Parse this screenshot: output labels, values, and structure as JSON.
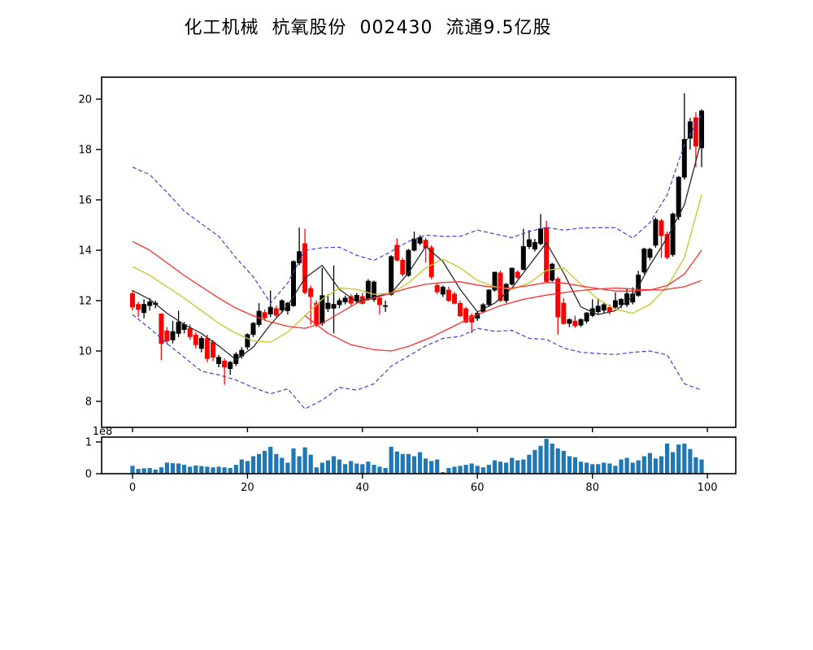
{
  "title": "化工机械  杭氧股份  002430  流通9.5亿股",
  "stock": {
    "industry": "化工机械",
    "name": "杭氧股份",
    "code": "002430",
    "float_shares": "流通9.5亿股"
  },
  "chart_data": {
    "type": "candlestick+volume",
    "title": "化工机械  杭氧股份  002430  流通9.5亿股",
    "xlabel": "",
    "ylabel": "",
    "x_ticks": [
      0,
      20,
      40,
      60,
      80,
      100
    ],
    "price_axis": {
      "ticks": [
        8,
        10,
        12,
        14,
        16,
        18,
        20
      ],
      "range": [
        6.97,
        20.87
      ]
    },
    "volume_axis": {
      "ticks": [
        0,
        1
      ],
      "offset_label": "1e8",
      "range": [
        0,
        1.15
      ]
    },
    "legend": "none",
    "grid": false,
    "colors": {
      "up": "#000000",
      "down": "#ff0000",
      "volume": "#1f77b4",
      "ma_black": "#2b2b2b",
      "ma_yellow": "#c9c932",
      "ma_red": "#ff2e2e",
      "band_blue": "#4040dd",
      "spine": "#000000"
    },
    "candles_ohlc": [
      [
        12.28,
        12.42,
        11.6,
        11.74
      ],
      [
        11.85,
        11.95,
        11.35,
        11.65
      ],
      [
        11.52,
        12.05,
        11.3,
        11.85
      ],
      [
        11.8,
        12.1,
        11.6,
        11.95
      ],
      [
        11.85,
        12.0,
        11.7,
        11.9
      ],
      [
        11.47,
        11.5,
        9.64,
        10.3
      ],
      [
        10.8,
        10.95,
        10.25,
        10.4
      ],
      [
        10.44,
        11.2,
        10.3,
        10.77
      ],
      [
        10.7,
        11.6,
        10.55,
        11.15
      ],
      [
        10.85,
        11.15,
        10.7,
        11.05
      ],
      [
        10.9,
        11.05,
        10.45,
        10.57
      ],
      [
        10.63,
        10.75,
        10.1,
        10.25
      ],
      [
        10.1,
        10.6,
        9.95,
        10.5
      ],
      [
        10.5,
        10.65,
        9.55,
        9.7
      ],
      [
        10.35,
        10.45,
        9.6,
        9.75
      ],
      [
        9.5,
        9.85,
        9.35,
        9.75
      ],
      [
        9.6,
        9.7,
        8.66,
        9.36
      ],
      [
        9.3,
        9.6,
        9.05,
        9.55
      ],
      [
        9.5,
        9.95,
        9.4,
        9.87
      ],
      [
        9.8,
        10.15,
        9.7,
        10.03
      ],
      [
        10.16,
        10.7,
        10.05,
        10.65
      ],
      [
        10.65,
        11.15,
        10.55,
        11.1
      ],
      [
        11.05,
        11.9,
        10.95,
        11.58
      ],
      [
        11.53,
        11.65,
        11.2,
        11.32
      ],
      [
        11.47,
        12.4,
        11.35,
        11.74
      ],
      [
        11.68,
        11.8,
        11.35,
        11.42
      ],
      [
        11.63,
        12.05,
        11.5,
        12.0
      ],
      [
        11.6,
        11.95,
        11.45,
        11.9
      ],
      [
        11.8,
        13.6,
        11.75,
        13.55
      ],
      [
        13.5,
        14.9,
        13.4,
        13.95
      ],
      [
        14.26,
        14.85,
        12.25,
        12.32
      ],
      [
        12.48,
        12.6,
        11.05,
        12.16
      ],
      [
        11.9,
        12.0,
        10.95,
        11.05
      ],
      [
        11.1,
        13.3,
        11.0,
        12.2
      ],
      [
        11.68,
        12.25,
        11.55,
        11.9
      ],
      [
        11.7,
        13.4,
        10.7,
        11.85
      ],
      [
        11.84,
        12.1,
        11.7,
        12.0
      ],
      [
        11.95,
        12.2,
        11.85,
        12.1
      ],
      [
        12.16,
        12.25,
        11.8,
        11.9
      ],
      [
        12.0,
        12.3,
        11.9,
        12.21
      ],
      [
        12.16,
        12.3,
        11.85,
        11.89
      ],
      [
        12.1,
        12.85,
        12.0,
        12.77
      ],
      [
        12.05,
        12.8,
        11.95,
        12.74
      ],
      [
        12.1,
        12.2,
        11.45,
        11.84
      ],
      [
        11.8,
        12.0,
        11.55,
        11.8
      ],
      [
        12.25,
        13.8,
        12.2,
        13.75
      ],
      [
        14.2,
        14.47,
        13.55,
        13.61
      ],
      [
        13.6,
        13.7,
        12.95,
        13.05
      ],
      [
        13.0,
        14.05,
        12.95,
        14.0
      ],
      [
        14.0,
        14.74,
        13.95,
        14.45
      ],
      [
        14.28,
        14.6,
        14.2,
        14.5
      ],
      [
        14.4,
        14.5,
        13.5,
        14.1
      ],
      [
        14.1,
        14.2,
        12.85,
        12.95
      ],
      [
        12.6,
        12.7,
        12.25,
        12.35
      ],
      [
        12.26,
        12.6,
        12.15,
        12.53
      ],
      [
        12.42,
        12.55,
        11.95,
        12.0
      ],
      [
        12.26,
        12.35,
        11.85,
        11.89
      ],
      [
        11.89,
        12.0,
        11.35,
        11.4
      ],
      [
        11.68,
        11.75,
        11.1,
        11.15
      ],
      [
        11.4,
        11.5,
        10.71,
        11.15
      ],
      [
        11.3,
        11.55,
        11.2,
        11.5
      ],
      [
        11.57,
        11.9,
        11.5,
        11.84
      ],
      [
        11.84,
        12.45,
        11.75,
        12.42
      ],
      [
        12.42,
        13.15,
        12.35,
        13.13
      ],
      [
        13.1,
        13.2,
        11.95,
        12.0
      ],
      [
        12.0,
        12.7,
        11.9,
        12.65
      ],
      [
        12.65,
        13.3,
        12.6,
        13.29
      ],
      [
        13.13,
        13.2,
        12.85,
        12.92
      ],
      [
        13.24,
        14.85,
        13.2,
        14.15
      ],
      [
        14.15,
        14.8,
        14.05,
        14.42
      ],
      [
        14.05,
        14.45,
        13.95,
        14.31
      ],
      [
        14.26,
        15.44,
        14.2,
        14.85
      ],
      [
        14.9,
        15.17,
        12.7,
        12.76
      ],
      [
        12.81,
        13.5,
        12.75,
        13.45
      ],
      [
        12.86,
        12.95,
        10.65,
        11.35
      ],
      [
        11.9,
        12.1,
        11.05,
        11.09
      ],
      [
        11.1,
        11.3,
        10.95,
        11.25
      ],
      [
        11.19,
        11.4,
        10.92,
        11.0
      ],
      [
        11.03,
        11.3,
        10.95,
        11.25
      ],
      [
        11.19,
        11.55,
        11.1,
        11.51
      ],
      [
        11.41,
        12.05,
        11.35,
        11.68
      ],
      [
        11.56,
        12.1,
        11.45,
        11.78
      ],
      [
        11.62,
        11.95,
        11.5,
        11.84
      ],
      [
        11.73,
        11.85,
        11.45,
        11.57
      ],
      [
        11.74,
        12.32,
        11.65,
        12.0
      ],
      [
        11.84,
        12.1,
        11.7,
        12.05
      ],
      [
        11.84,
        12.5,
        11.75,
        12.27
      ],
      [
        11.94,
        12.53,
        11.85,
        12.26
      ],
      [
        12.21,
        13.18,
        12.15,
        13.02
      ],
      [
        13.13,
        14.1,
        13.05,
        14.05
      ],
      [
        13.72,
        14.1,
        13.6,
        14.04
      ],
      [
        14.2,
        15.3,
        14.1,
        15.22
      ],
      [
        15.17,
        15.25,
        13.7,
        14.58
      ],
      [
        14.63,
        14.75,
        13.65,
        13.72
      ],
      [
        13.83,
        15.5,
        13.75,
        15.44
      ],
      [
        15.33,
        16.95,
        15.2,
        16.9
      ],
      [
        16.9,
        20.23,
        16.8,
        18.4
      ],
      [
        18.45,
        19.25,
        18.0,
        19.1
      ],
      [
        19.26,
        19.48,
        17.3,
        18.13
      ],
      [
        18.07,
        19.6,
        17.3,
        19.53
      ]
    ],
    "volumes_1e8": [
      0.25,
      0.15,
      0.17,
      0.18,
      0.13,
      0.2,
      0.35,
      0.33,
      0.32,
      0.28,
      0.22,
      0.26,
      0.24,
      0.22,
      0.2,
      0.22,
      0.2,
      0.18,
      0.28,
      0.45,
      0.4,
      0.55,
      0.62,
      0.72,
      0.85,
      0.62,
      0.5,
      0.35,
      0.8,
      0.55,
      0.83,
      0.6,
      0.2,
      0.35,
      0.42,
      0.55,
      0.45,
      0.3,
      0.4,
      0.32,
      0.3,
      0.38,
      0.28,
      0.22,
      0.18,
      0.85,
      0.7,
      0.62,
      0.62,
      0.55,
      0.68,
      0.48,
      0.4,
      0.45,
      0.05,
      0.18,
      0.22,
      0.25,
      0.28,
      0.32,
      0.25,
      0.2,
      0.28,
      0.42,
      0.38,
      0.35,
      0.5,
      0.42,
      0.45,
      0.6,
      0.75,
      0.88,
      1.1,
      0.95,
      0.8,
      0.72,
      0.55,
      0.52,
      0.38,
      0.35,
      0.3,
      0.3,
      0.35,
      0.32,
      0.25,
      0.45,
      0.5,
      0.35,
      0.42,
      0.55,
      0.65,
      0.48,
      0.55,
      0.95,
      0.68,
      0.92,
      0.95,
      0.78,
      0.52,
      0.45
    ],
    "overlays": {
      "ma_black": {
        "style": "solid",
        "x": [
          0,
          3,
          6,
          9,
          12,
          15,
          18,
          21,
          24,
          27,
          30,
          33,
          36,
          39,
          42,
          45,
          48,
          51,
          54,
          57,
          60,
          63,
          66,
          69,
          72,
          75,
          78,
          81,
          84,
          87,
          90,
          93,
          96,
          99
        ],
        "y": [
          12.4,
          12.05,
          11.5,
          11.05,
          10.7,
          10.2,
          9.65,
          10.15,
          11.05,
          11.8,
          12.9,
          13.4,
          12.45,
          11.95,
          12.15,
          12.3,
          13.1,
          14.15,
          13.55,
          12.45,
          11.55,
          11.9,
          12.5,
          13.4,
          14.3,
          13.1,
          11.75,
          11.45,
          11.6,
          12.15,
          13.4,
          14.5,
          15.8,
          18.4
        ]
      },
      "ma_yellow": {
        "style": "solid",
        "x": [
          0,
          3,
          6,
          9,
          12,
          15,
          18,
          21,
          24,
          27,
          30,
          33,
          36,
          39,
          42,
          45,
          48,
          51,
          54,
          57,
          60,
          63,
          66,
          69,
          72,
          75,
          78,
          81,
          84,
          87,
          90,
          93,
          96,
          99
        ],
        "y": [
          13.35,
          13.0,
          12.55,
          12.1,
          11.6,
          11.1,
          10.7,
          10.4,
          10.35,
          10.75,
          11.4,
          12.05,
          12.5,
          12.45,
          12.25,
          12.3,
          12.7,
          13.3,
          13.65,
          13.3,
          12.8,
          12.55,
          12.45,
          12.7,
          13.2,
          13.3,
          12.65,
          12.05,
          11.65,
          11.5,
          11.85,
          12.55,
          13.7,
          16.2
        ]
      },
      "ma_red": {
        "style": "solid",
        "x": [
          0,
          3,
          6,
          9,
          12,
          15,
          18,
          21,
          24,
          27,
          30,
          33,
          36,
          39,
          42,
          45,
          48,
          51,
          54,
          57,
          60,
          63,
          66,
          69,
          72,
          75,
          78,
          81,
          84,
          87,
          90,
          93,
          96,
          99
        ],
        "y": [
          14.35,
          14.0,
          13.5,
          13.0,
          12.55,
          12.1,
          11.7,
          11.4,
          11.15,
          10.98,
          10.9,
          11.1,
          11.5,
          11.9,
          12.1,
          12.3,
          12.5,
          12.65,
          12.72,
          12.75,
          12.62,
          12.52,
          12.5,
          12.6,
          12.72,
          12.7,
          12.58,
          12.48,
          12.38,
          12.38,
          12.42,
          12.6,
          13.05,
          14.0
        ]
      },
      "ma_red_slow": {
        "style": "solid",
        "x": [
          30,
          34,
          38,
          42,
          45,
          48,
          52,
          56,
          60,
          64,
          68,
          72,
          76,
          80,
          84,
          88,
          92,
          96,
          99
        ],
        "y": [
          11.4,
          10.7,
          10.25,
          10.05,
          10.0,
          10.18,
          10.55,
          11.0,
          11.45,
          11.8,
          12.05,
          12.22,
          12.35,
          12.45,
          12.5,
          12.45,
          12.42,
          12.55,
          12.8
        ]
      },
      "boll_upper": {
        "style": "dashed",
        "x": [
          0,
          3,
          6,
          9,
          12,
          15,
          18,
          21,
          24,
          27,
          30,
          33,
          36,
          39,
          42,
          45,
          48,
          51,
          54,
          57,
          60,
          63,
          66,
          69,
          72,
          75,
          78,
          81,
          84,
          87,
          90,
          93,
          96,
          99
        ],
        "y": [
          17.3,
          17.0,
          16.3,
          15.55,
          15.05,
          14.55,
          13.7,
          12.95,
          11.9,
          12.7,
          14.0,
          14.1,
          14.12,
          13.8,
          13.6,
          13.95,
          14.35,
          14.6,
          14.55,
          14.55,
          14.8,
          14.65,
          14.5,
          14.75,
          14.9,
          14.8,
          14.88,
          14.9,
          14.9,
          14.48,
          15.1,
          16.2,
          18.2,
          19.4
        ]
      },
      "boll_lower": {
        "style": "dashed",
        "x": [
          0,
          3,
          6,
          9,
          12,
          15,
          18,
          21,
          24,
          27,
          30,
          33,
          36,
          39,
          42,
          45,
          48,
          51,
          54,
          57,
          60,
          63,
          66,
          69,
          72,
          75,
          78,
          81,
          84,
          87,
          90,
          93,
          96,
          99
        ],
        "y": [
          11.45,
          10.9,
          10.3,
          9.75,
          9.2,
          9.05,
          8.85,
          8.55,
          8.3,
          8.5,
          7.7,
          8.05,
          8.55,
          8.45,
          8.7,
          9.4,
          9.8,
          10.2,
          10.5,
          10.58,
          10.9,
          10.78,
          10.82,
          10.5,
          10.46,
          10.12,
          9.95,
          9.9,
          9.86,
          9.95,
          10.0,
          9.85,
          8.7,
          8.45
        ]
      }
    }
  }
}
